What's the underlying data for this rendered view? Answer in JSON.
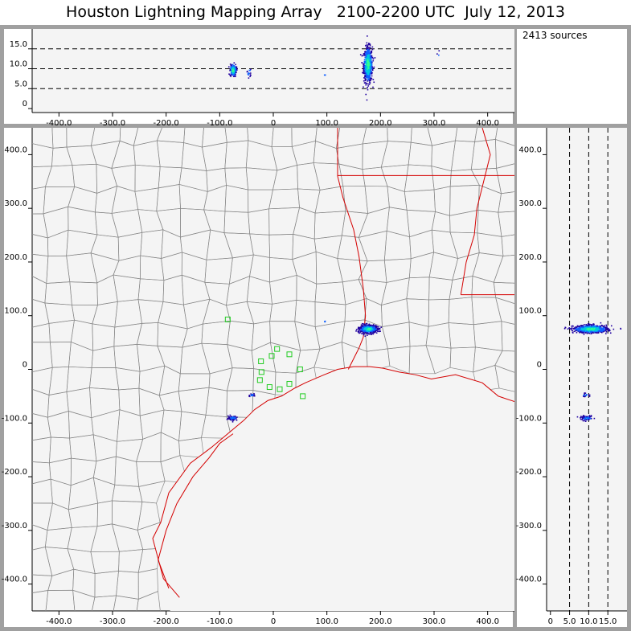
{
  "title": "Houston Lightning Mapping Array   2100-2200 UTC  July 12, 2013",
  "sources_label": "2413 sources",
  "colors": {
    "county": "#8a8a8a",
    "state": "#d40000",
    "coast": "#d40000",
    "station": "#22cc22",
    "plot_bg": "#f4f4f4",
    "frame": "#a0a0a0"
  },
  "chart_data": [
    {
      "type": "scatter",
      "name_hint": "altitude-vs-east-west",
      "x_range": [
        -450,
        450
      ],
      "y_range": [
        -1,
        20
      ],
      "x_ticks": [
        "-400.0",
        "-300.0",
        "-200.0",
        "-100.0",
        "0",
        "100.0",
        "200.0",
        "300.0",
        "400.0"
      ],
      "x_tick_values": [
        -400,
        -300,
        -200,
        -100,
        0,
        100,
        200,
        300,
        400
      ],
      "y_ticks": [
        "0",
        "5.0",
        "10.0",
        "15.0"
      ],
      "y_tick_values": [
        0,
        5,
        10,
        15
      ],
      "dashed_lines": [
        5,
        10,
        15
      ],
      "clusters": [
        {
          "x": 177,
          "y": 11,
          "sx": 4,
          "sy": 2.2,
          "n": 700
        },
        {
          "x": -75,
          "y": 9.6,
          "sx": 3,
          "sy": 0.8,
          "n": 120
        },
        {
          "x": -45,
          "y": 9,
          "sx": 2,
          "sy": 0.6,
          "n": 15
        },
        {
          "x": 96,
          "y": 8.5,
          "sx": 1,
          "sy": 0.3,
          "n": 3
        },
        {
          "x": 308,
          "y": 13.5,
          "sx": 1,
          "sy": 0.5,
          "n": 3
        }
      ]
    },
    {
      "type": "scatter",
      "name_hint": "plan-view-map",
      "x_range": [
        -450,
        450
      ],
      "y_range": [
        -450,
        450
      ],
      "x_ticks": [
        "-400.0",
        "-300.0",
        "-200.0",
        "-100.0",
        "0",
        "100.0",
        "200.0",
        "300.0",
        "400.0"
      ],
      "x_tick_values": [
        -400,
        -300,
        -200,
        -100,
        0,
        100,
        200,
        300,
        400
      ],
      "y_ticks": [
        "400.0",
        "300.0",
        "200.0",
        "100.0",
        "0",
        "-100.0",
        "-200.0",
        "-300.0",
        "-400.0"
      ],
      "y_tick_values": [
        400,
        300,
        200,
        100,
        0,
        -100,
        -200,
        -300,
        -400
      ],
      "clusters": [
        {
          "x": 178,
          "y": 75,
          "sx": 8,
          "sy": 3.5,
          "n": 700
        },
        {
          "x": -76,
          "y": -91,
          "sx": 4,
          "sy": 2,
          "n": 90
        },
        {
          "x": -40,
          "y": -48,
          "sx": 3,
          "sy": 1.5,
          "n": 20
        },
        {
          "x": 96,
          "y": 89,
          "sx": 1,
          "sy": 1,
          "n": 3
        }
      ],
      "stations": [
        [
          -85,
          93
        ],
        [
          -23,
          15
        ],
        [
          -3,
          25
        ],
        [
          7,
          38
        ],
        [
          30,
          28
        ],
        [
          -22,
          -5
        ],
        [
          -25,
          -20
        ],
        [
          -7,
          -33
        ],
        [
          12,
          -37
        ],
        [
          30,
          -27
        ],
        [
          50,
          0
        ],
        [
          55,
          -50
        ]
      ],
      "coast": [
        [
          -175,
          -425
        ],
        [
          -205,
          -390
        ],
        [
          -225,
          -315
        ],
        [
          -210,
          -285
        ],
        [
          -195,
          -230
        ],
        [
          -155,
          -175
        ],
        [
          -115,
          -145
        ],
        [
          -85,
          -120
        ],
        [
          -55,
          -95
        ],
        [
          -35,
          -75
        ],
        [
          -10,
          -58
        ],
        [
          15,
          -50
        ],
        [
          40,
          -35
        ],
        [
          60,
          -25
        ],
        [
          95,
          -10
        ],
        [
          120,
          0
        ],
        [
          150,
          5
        ],
        [
          180,
          5
        ],
        [
          205,
          2
        ],
        [
          235,
          -5
        ],
        [
          265,
          -10
        ],
        [
          295,
          -18
        ],
        [
          340,
          -10
        ],
        [
          390,
          -25
        ],
        [
          420,
          -50
        ],
        [
          450,
          -60
        ]
      ],
      "coast_inner": [
        [
          -195,
          -408
        ],
        [
          -215,
          -355
        ],
        [
          -200,
          -300
        ],
        [
          -180,
          -250
        ],
        [
          -150,
          -200
        ],
        [
          -120,
          -165
        ],
        [
          -100,
          -138
        ],
        [
          -75,
          -120
        ]
      ],
      "state_lines": [
        [
          [
            120,
            450
          ],
          [
            120,
            360
          ],
          [
            130,
            320
          ],
          [
            150,
            260
          ],
          [
            160,
            210
          ],
          [
            168,
            150
          ],
          [
            172,
            100
          ],
          [
            168,
            60
          ],
          [
            160,
            40
          ],
          [
            150,
            20
          ],
          [
            140,
            0
          ]
        ],
        [
          [
            120,
            361
          ],
          [
            450,
            361
          ]
        ],
        [
          [
            350,
            139
          ],
          [
            450,
            139
          ]
        ],
        [
          [
            350,
            139
          ],
          [
            360,
            200
          ],
          [
            375,
            250
          ],
          [
            380,
            300
          ],
          [
            395,
            360
          ],
          [
            405,
            400
          ],
          [
            390,
            450
          ]
        ]
      ]
    },
    {
      "type": "scatter",
      "name_hint": "north-south-vs-altitude",
      "x_range": [
        -1,
        20
      ],
      "y_range": [
        -450,
        450
      ],
      "x_ticks": [
        "0",
        "5.0",
        "10.0",
        "15.0"
      ],
      "x_tick_values": [
        0,
        5,
        10,
        15
      ],
      "y_ticks": [
        "400.0",
        "300.0",
        "200.0",
        "100.0",
        "0",
        "-100.0",
        "-200.0",
        "-300.0",
        "-400.0"
      ],
      "y_tick_values": [
        400,
        300,
        200,
        100,
        0,
        -100,
        -200,
        -300,
        -400
      ],
      "dashed_lines": [
        5,
        10,
        15
      ],
      "clusters": [
        {
          "x": 10.5,
          "y": 75,
          "sx": 2.2,
          "sy": 3.5,
          "n": 700
        },
        {
          "x": 9.5,
          "y": -91,
          "sx": 0.8,
          "sy": 2,
          "n": 90
        },
        {
          "x": 9.2,
          "y": -48,
          "sx": 0.6,
          "sy": 1.5,
          "n": 20
        }
      ]
    }
  ]
}
